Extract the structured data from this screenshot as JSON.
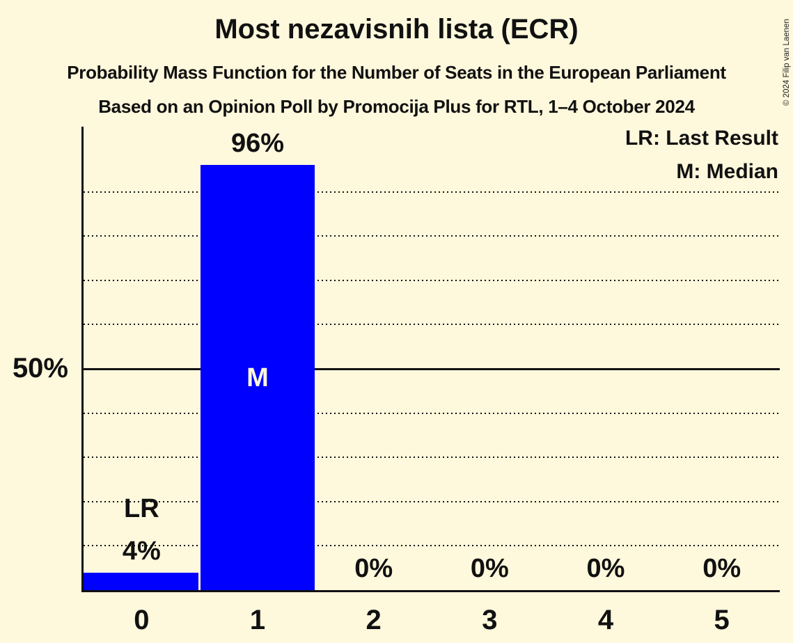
{
  "header": {
    "title": "Most nezavisnih lista (ECR)",
    "subtitle_line1": "Probability Mass Function for the Number of Seats in the European Parliament",
    "subtitle_line2": "Based on an Opinion Poll by Promocija Plus for RTL, 1–4 October 2024"
  },
  "legend": {
    "last_result": "LR: Last Result",
    "median": "M: Median"
  },
  "copyright": "© 2024 Filip van Laenen",
  "colors": {
    "background": "#FEF8DC",
    "bar": "#0000FF",
    "text": "#111111"
  },
  "chart_data": {
    "type": "bar",
    "title": "Most nezavisnih lista (ECR)",
    "categories": [
      "0",
      "1",
      "2",
      "3",
      "4",
      "5"
    ],
    "values_percent": [
      4,
      96,
      0,
      0,
      0,
      0
    ],
    "bar_value_labels": [
      "4%",
      "96%",
      "0%",
      "0%",
      "0%",
      "0%"
    ],
    "xlabel": "",
    "ylabel": "",
    "ylim": [
      0,
      100
    ],
    "y_axis_labeled_tick": {
      "percent": 50,
      "label": "50%"
    },
    "dotted_gridlines_percent": [
      10,
      20,
      30,
      40,
      50,
      60,
      70,
      80,
      90
    ],
    "solid_gridline_percent": 50,
    "grid": "horizontal dotted",
    "legend_position": "top-right",
    "annotations": [
      {
        "category": "0",
        "label": "LR",
        "meaning": "Last Result",
        "placement": "above"
      },
      {
        "category": "1",
        "label": "M",
        "meaning": "Median",
        "placement": "inside"
      }
    ]
  }
}
